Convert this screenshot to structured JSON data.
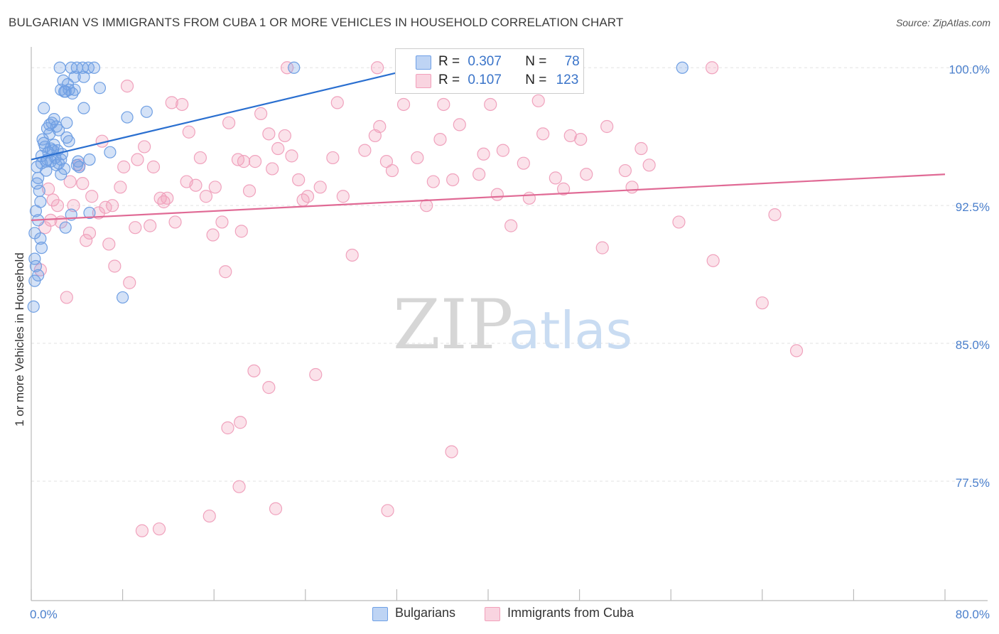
{
  "title": "BULGARIAN VS IMMIGRANTS FROM CUBA 1 OR MORE VEHICLES IN HOUSEHOLD CORRELATION CHART",
  "source": "Source: ZipAtlas.com",
  "watermark": {
    "zip": "ZIP",
    "atlas": "atlas"
  },
  "legend": {
    "bulgarians": {
      "r_label": "R =",
      "r_value": "0.307",
      "n_label": "N =",
      "n_value": "78"
    },
    "cuba": {
      "r_label": "R =",
      "r_value": "0.107",
      "n_label": "N =",
      "n_value": "123"
    }
  },
  "bottom_legend": {
    "bulgarians": "Bulgarians",
    "cuba": "Immigrants from Cuba"
  },
  "chart_data": {
    "type": "scatter",
    "title": "BULGARIAN VS IMMIGRANTS FROM CUBA 1 OR MORE VEHICLES IN HOUSEHOLD CORRELATION CHART",
    "xlabel": "",
    "ylabel": "1 or more Vehicles in Household",
    "xlim": [
      0,
      80
    ],
    "ylim": [
      71.0,
      100.9
    ],
    "x_tick_labels": [
      "0.0%",
      "80.0%"
    ],
    "y_ticks": [
      100.0,
      92.5,
      85.0,
      77.5
    ],
    "y_tick_labels": [
      "100.0%",
      "92.5%",
      "85.0%",
      "77.5%"
    ],
    "grid": true,
    "colors": {
      "bulgarians": "#6fa0e6",
      "bulgarians_line": "#2a6fd0",
      "cuba": "#f2a0bb",
      "cuba_line": "#e06a95",
      "tick_text": "#4a7fcc"
    },
    "series": [
      {
        "name": "Bulgarians",
        "trend": {
          "x": [
            0.0,
            32.5
          ],
          "y": [
            95.0,
            99.8
          ]
        },
        "points": [
          [
            2.5,
            100
          ],
          [
            3.5,
            100
          ],
          [
            4.5,
            100
          ],
          [
            5,
            100
          ],
          [
            5.5,
            100
          ],
          [
            23,
            100
          ],
          [
            57,
            100
          ],
          [
            2.8,
            99.3
          ],
          [
            3.2,
            99.1
          ],
          [
            2.6,
            98.8
          ],
          [
            3.0,
            98.7
          ],
          [
            3.3,
            98.8
          ],
          [
            3.8,
            98.8
          ],
          [
            6.0,
            98.9
          ],
          [
            4.6,
            99.5
          ],
          [
            1.1,
            97.8
          ],
          [
            2.0,
            97.2
          ],
          [
            4.6,
            97.8
          ],
          [
            8.4,
            97.3
          ],
          [
            10.1,
            97.6
          ],
          [
            3.8,
            99.5
          ],
          [
            1.6,
            96.9
          ],
          [
            1.6,
            96.4
          ],
          [
            2.4,
            96.6
          ],
          [
            1.8,
            97.0
          ],
          [
            2.2,
            96.8
          ],
          [
            3.1,
            96.2
          ],
          [
            1.2,
            95.7
          ],
          [
            1.7,
            95.6
          ],
          [
            1.9,
            95.5
          ],
          [
            2.3,
            95.5
          ],
          [
            2.7,
            95.3
          ],
          [
            2.6,
            95.0
          ],
          [
            0.9,
            95.2
          ],
          [
            1.4,
            95.0
          ],
          [
            1.7,
            94.9
          ],
          [
            2.1,
            95.1
          ],
          [
            2.4,
            94.8
          ],
          [
            4.0,
            94.7
          ],
          [
            5.1,
            95.0
          ],
          [
            6.9,
            95.4
          ],
          [
            0.5,
            94.6
          ],
          [
            0.9,
            94.8
          ],
          [
            1.3,
            94.4
          ],
          [
            2.6,
            94.2
          ],
          [
            4.2,
            94.6
          ],
          [
            0.6,
            94.0
          ],
          [
            0.5,
            93.7
          ],
          [
            0.7,
            93.3
          ],
          [
            0.8,
            92.7
          ],
          [
            0.4,
            92.2
          ],
          [
            0.6,
            91.7
          ],
          [
            3.5,
            92.0
          ],
          [
            5.1,
            92.1
          ],
          [
            0.3,
            91.0
          ],
          [
            0.8,
            90.7
          ],
          [
            0.9,
            90.2
          ],
          [
            3.0,
            91.3
          ],
          [
            0.3,
            89.6
          ],
          [
            0.4,
            89.2
          ],
          [
            0.6,
            88.7
          ],
          [
            0.3,
            88.4
          ],
          [
            0.2,
            87.0
          ],
          [
            8.0,
            87.5
          ],
          [
            1.4,
            96.7
          ],
          [
            2.0,
            95.8
          ],
          [
            1.5,
            95.4
          ],
          [
            3.3,
            96.0
          ],
          [
            2.9,
            94.5
          ],
          [
            1.0,
            96.1
          ],
          [
            1.3,
            94.9
          ],
          [
            4.1,
            94.9
          ],
          [
            2.9,
            98.7
          ],
          [
            4.0,
            100
          ],
          [
            3.1,
            97.0
          ],
          [
            3.6,
            98.6
          ],
          [
            2.2,
            94.7
          ],
          [
            1.1,
            95.9
          ]
        ]
      },
      {
        "name": "Immigrants from Cuba",
        "trend": {
          "x": [
            0.0,
            80.0
          ],
          "y": [
            91.7,
            94.2
          ]
        },
        "points": [
          [
            0.8,
            89.0
          ],
          [
            1.2,
            91.3
          ],
          [
            1.5,
            93.4
          ],
          [
            1.7,
            91.7
          ],
          [
            1.9,
            92.8
          ],
          [
            2.3,
            92.5
          ],
          [
            2.6,
            91.6
          ],
          [
            3.1,
            87.5
          ],
          [
            3.4,
            93.8
          ],
          [
            3.7,
            92.5
          ],
          [
            4.2,
            94.7
          ],
          [
            4.5,
            93.7
          ],
          [
            4.8,
            90.6
          ],
          [
            5.1,
            91.0
          ],
          [
            5.3,
            93.0
          ],
          [
            5.9,
            92.1
          ],
          [
            6.2,
            96.0
          ],
          [
            6.5,
            92.4
          ],
          [
            6.8,
            90.4
          ],
          [
            7.1,
            92.5
          ],
          [
            7.3,
            89.2
          ],
          [
            7.8,
            93.5
          ],
          [
            8.1,
            94.6
          ],
          [
            8.4,
            99.0
          ],
          [
            8.6,
            88.3
          ],
          [
            9.1,
            91.3
          ],
          [
            9.3,
            95.0
          ],
          [
            9.9,
            95.7
          ],
          [
            10.4,
            91.4
          ],
          [
            10.7,
            94.6
          ],
          [
            11.3,
            92.9
          ],
          [
            11.6,
            92.7
          ],
          [
            11.9,
            92.9
          ],
          [
            12.3,
            98.1
          ],
          [
            12.6,
            91.6
          ],
          [
            13.2,
            98.0
          ],
          [
            13.6,
            93.8
          ],
          [
            13.8,
            96.5
          ],
          [
            14.4,
            93.6
          ],
          [
            14.8,
            95.1
          ],
          [
            15.3,
            93.0
          ],
          [
            15.9,
            90.9
          ],
          [
            16.1,
            93.5
          ],
          [
            16.7,
            91.6
          ],
          [
            17.0,
            88.9
          ],
          [
            17.3,
            97.0
          ],
          [
            18.1,
            95.0
          ],
          [
            18.4,
            91.1
          ],
          [
            18.6,
            94.9
          ],
          [
            19.1,
            93.3
          ],
          [
            19.6,
            94.9
          ],
          [
            20.1,
            97.5
          ],
          [
            20.8,
            96.4
          ],
          [
            21.1,
            94.5
          ],
          [
            21.6,
            95.6
          ],
          [
            22.2,
            96.3
          ],
          [
            22.8,
            95.2
          ],
          [
            23.4,
            93.9
          ],
          [
            23.8,
            92.8
          ],
          [
            24.2,
            93.0
          ],
          [
            25.3,
            93.5
          ],
          [
            26.4,
            95.1
          ],
          [
            26.8,
            98.1
          ],
          [
            27.3,
            93.0
          ],
          [
            28.1,
            89.8
          ],
          [
            29.2,
            95.5
          ],
          [
            30.1,
            96.3
          ],
          [
            30.5,
            96.8
          ],
          [
            31.1,
            94.9
          ],
          [
            31.6,
            94.4
          ],
          [
            32.6,
            98.0
          ],
          [
            33.8,
            95.1
          ],
          [
            34.6,
            92.5
          ],
          [
            35.2,
            93.8
          ],
          [
            35.8,
            96.1
          ],
          [
            36.1,
            98.0
          ],
          [
            36.9,
            93.9
          ],
          [
            37.5,
            96.9
          ],
          [
            39.2,
            94.2
          ],
          [
            39.6,
            95.3
          ],
          [
            40.2,
            98.0
          ],
          [
            40.8,
            93.1
          ],
          [
            41.3,
            95.5
          ],
          [
            42.0,
            91.4
          ],
          [
            43.1,
            94.8
          ],
          [
            43.6,
            92.9
          ],
          [
            44.4,
            98.2
          ],
          [
            44.8,
            96.4
          ],
          [
            45.9,
            94.0
          ],
          [
            46.6,
            93.4
          ],
          [
            47.2,
            96.3
          ],
          [
            48.1,
            96.1
          ],
          [
            48.6,
            94.2
          ],
          [
            50.0,
            90.2
          ],
          [
            50.4,
            96.8
          ],
          [
            52.0,
            94.4
          ],
          [
            52.6,
            93.5
          ],
          [
            53.4,
            95.6
          ],
          [
            54.1,
            94.7
          ],
          [
            56.7,
            91.6
          ],
          [
            59.7,
            89.5
          ],
          [
            64.0,
            87.2
          ],
          [
            65.1,
            92.0
          ],
          [
            67.0,
            84.6
          ],
          [
            19.5,
            83.5
          ],
          [
            20.8,
            82.6
          ],
          [
            24.9,
            83.3
          ],
          [
            18.3,
            80.7
          ],
          [
            17.2,
            80.4
          ],
          [
            36.8,
            79.1
          ],
          [
            18.2,
            77.2
          ],
          [
            21.4,
            76.0
          ],
          [
            31.2,
            75.9
          ],
          [
            15.6,
            75.6
          ],
          [
            11.2,
            74.9
          ],
          [
            9.7,
            74.8
          ],
          [
            22.4,
            100
          ],
          [
            30.3,
            100
          ],
          [
            59.6,
            100
          ]
        ]
      }
    ]
  }
}
